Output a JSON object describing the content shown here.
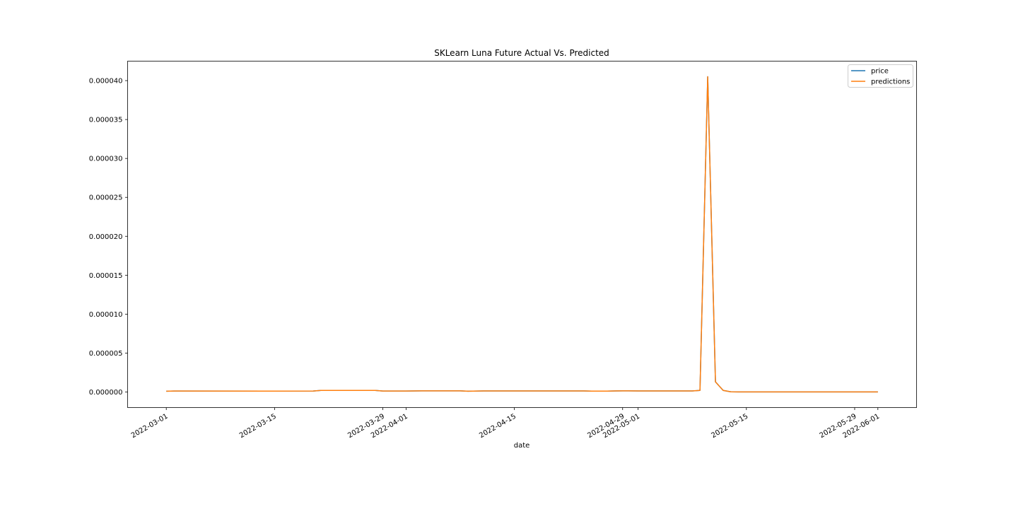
{
  "chart_data": {
    "type": "line",
    "title": "SKLearn Luna Future Actual Vs. Predicted",
    "xlabel": "date",
    "ylabel": "",
    "x_tick_labels": [
      "2022-03-01",
      "2022-03-15",
      "2022-03-29",
      "2022-04-01",
      "2022-04-15",
      "2022-04-29",
      "2022-05-01",
      "2022-05-15",
      "2022-05-29",
      "2022-06-01"
    ],
    "y_tick_labels": [
      "0.000000",
      "0.000005",
      "0.000010",
      "0.000015",
      "0.000020",
      "0.000025",
      "0.000030",
      "0.000035",
      "0.000040"
    ],
    "y_tick_values": [
      0,
      5e-06,
      1e-05,
      1.5e-05,
      2e-05,
      2.5e-05,
      3e-05,
      3.5e-05,
      4e-05
    ],
    "xlim": [
      "2022-02-24",
      "2022-06-06"
    ],
    "ylim": [
      -2e-06,
      4.25e-05
    ],
    "legend_position": "upper right",
    "grid": false,
    "series": [
      {
        "name": "price",
        "color": "#1f77b4",
        "x": [
          "2022-03-01",
          "2022-03-02",
          "2022-03-14",
          "2022-03-20",
          "2022-03-21",
          "2022-03-28",
          "2022-03-29",
          "2022-04-01",
          "2022-04-03",
          "2022-04-08",
          "2022-04-09",
          "2022-04-11",
          "2022-04-24",
          "2022-04-25",
          "2022-04-27",
          "2022-04-28",
          "2022-04-29",
          "2022-05-01",
          "2022-05-03",
          "2022-05-08",
          "2022-05-09",
          "2022-05-10",
          "2022-05-11",
          "2022-05-12",
          "2022-05-13",
          "2022-05-14",
          "2022-05-20",
          "2022-05-25",
          "2022-05-31",
          "2022-06-01"
        ],
        "y": [
          1e-07,
          1.2e-07,
          1.1e-07,
          1.2e-07,
          2e-07,
          2e-07,
          1.2e-07,
          1.2e-07,
          1.5e-07,
          1.5e-07,
          1e-07,
          1.4e-07,
          1.4e-07,
          1.1e-07,
          1.1e-07,
          1.3e-07,
          1.5e-07,
          1.3e-07,
          1.3e-07,
          1.4e-07,
          2e-07,
          4.05e-05,
          1.3e-06,
          2e-07,
          2e-08,
          1e-08,
          1e-08,
          1e-08,
          1e-08,
          1e-08
        ]
      },
      {
        "name": "predictions",
        "color": "#ff7f0e",
        "x": [
          "2022-03-01",
          "2022-03-02",
          "2022-03-14",
          "2022-03-20",
          "2022-03-21",
          "2022-03-28",
          "2022-03-29",
          "2022-04-01",
          "2022-04-03",
          "2022-04-08",
          "2022-04-09",
          "2022-04-11",
          "2022-04-24",
          "2022-04-25",
          "2022-04-27",
          "2022-04-28",
          "2022-04-29",
          "2022-05-01",
          "2022-05-03",
          "2022-05-08",
          "2022-05-09",
          "2022-05-10",
          "2022-05-11",
          "2022-05-12",
          "2022-05-13",
          "2022-05-14",
          "2022-05-20",
          "2022-05-25",
          "2022-05-31",
          "2022-06-01"
        ],
        "y": [
          1e-07,
          1.2e-07,
          1.1e-07,
          1.2e-07,
          2e-07,
          2e-07,
          1.2e-07,
          1.2e-07,
          1.5e-07,
          1.5e-07,
          1e-07,
          1.4e-07,
          1.4e-07,
          1.1e-07,
          1.1e-07,
          1.3e-07,
          1.5e-07,
          1.3e-07,
          1.3e-07,
          1.4e-07,
          2e-07,
          4.05e-05,
          1.3e-06,
          2e-07,
          2e-08,
          1e-08,
          1e-08,
          1e-08,
          1e-08,
          1e-08
        ]
      }
    ]
  }
}
